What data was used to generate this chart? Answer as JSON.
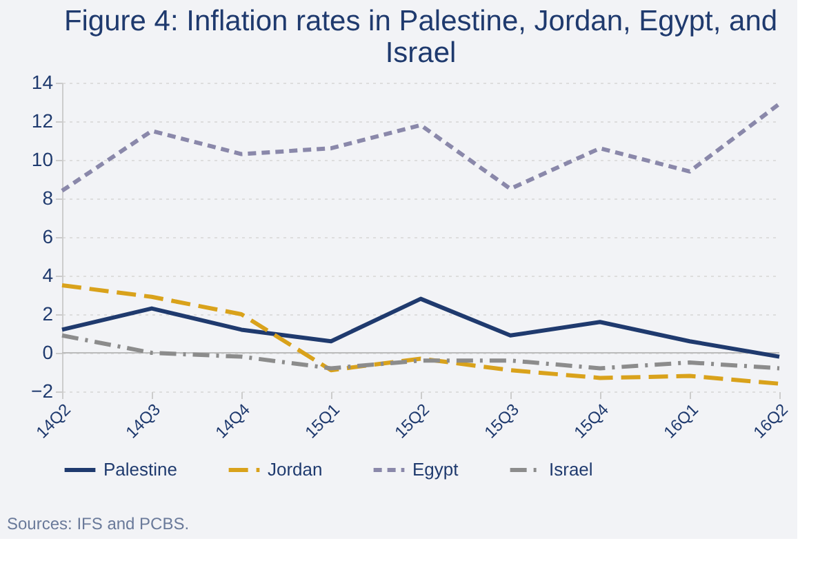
{
  "chart_data": {
    "type": "line",
    "title": [
      "Figure 4: Inflation rates in Palestine, Jordan, Egypt, and",
      "Israel"
    ],
    "categories": [
      "14Q2",
      "14Q3",
      "14Q4",
      "15Q1",
      "15Q2",
      "15Q3",
      "15Q4",
      "16Q1",
      "16Q2"
    ],
    "series": [
      {
        "name": "Palestine",
        "color": "#1f3a6e",
        "line_style": "solid",
        "values": [
          1.2,
          2.3,
          1.2,
          0.6,
          2.8,
          0.9,
          1.6,
          0.6,
          -0.2
        ]
      },
      {
        "name": "Jordan",
        "color": "#d9a21b",
        "line_style": "dashed",
        "values": [
          3.5,
          2.9,
          2.0,
          -0.9,
          -0.3,
          -0.9,
          -1.3,
          -1.2,
          -1.6
        ]
      },
      {
        "name": "Egypt",
        "color": "#8a88aa",
        "line_style": "dotted",
        "values": [
          8.4,
          11.5,
          10.3,
          10.6,
          11.8,
          8.5,
          10.6,
          9.4,
          12.9
        ]
      },
      {
        "name": "Israel",
        "color": "#8c8c8c",
        "line_style": "dashdot",
        "values": [
          0.9,
          0.0,
          -0.2,
          -0.8,
          -0.4,
          -0.4,
          -0.8,
          -0.5,
          -0.8
        ]
      }
    ],
    "ylim": [
      -2,
      14
    ],
    "yticks": [
      -2,
      0,
      2,
      4,
      6,
      8,
      10,
      12,
      14
    ],
    "grid": "y",
    "legend": "bottom",
    "annotations": [
      "Sources: IFS and PCBS."
    ]
  }
}
